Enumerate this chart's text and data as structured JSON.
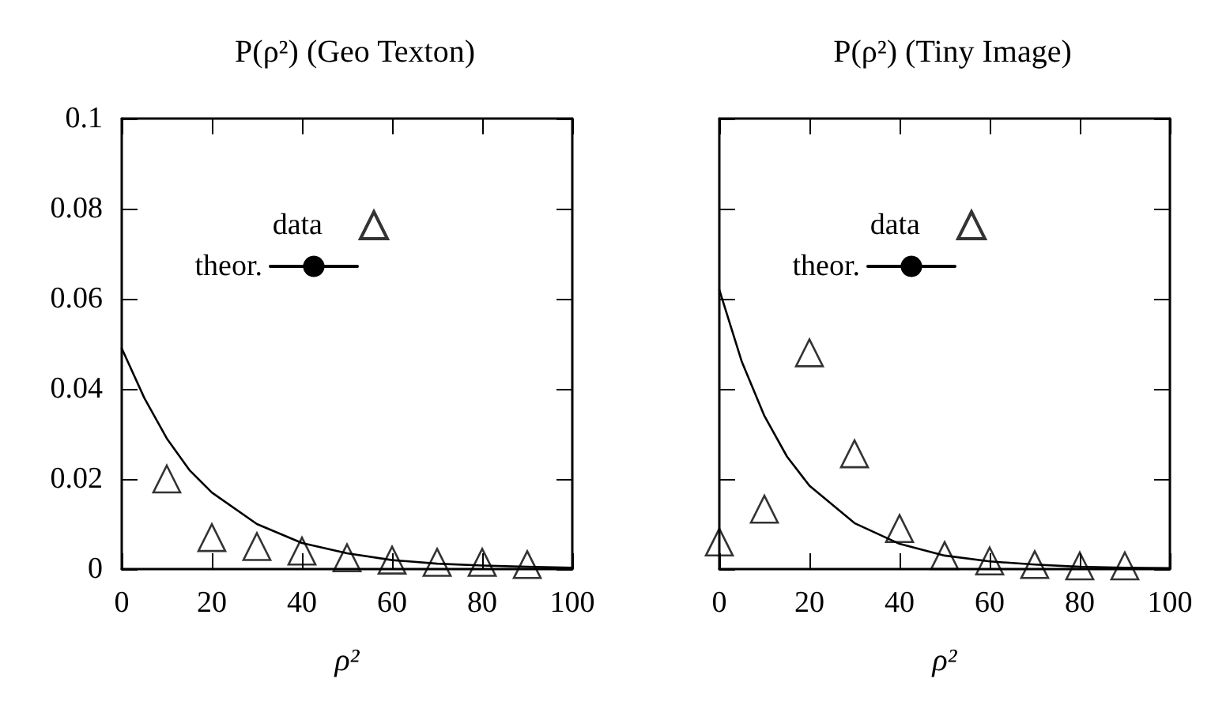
{
  "chart_data": [
    {
      "type": "scatter",
      "title": "P(ρ²) (Geo Texton)",
      "xlabel": "ρ²",
      "xlim": [
        0,
        100
      ],
      "xticks": [
        0,
        20,
        40,
        60,
        80,
        100
      ],
      "ylim": [
        0,
        0.1
      ],
      "yticks": [
        0,
        0.02,
        0.04,
        0.06,
        0.08,
        0.1
      ],
      "grid": false,
      "legend": "top",
      "series": [
        {
          "name": "data",
          "marker": "triangle",
          "color": "#000000",
          "x": [
            10,
            20,
            30,
            40,
            50,
            60,
            70,
            80,
            90
          ],
          "values": [
            0.02,
            0.007,
            0.005,
            0.004,
            0.0025,
            0.002,
            0.0015,
            0.0015,
            0.001
          ]
        },
        {
          "name": "theor.",
          "type": "line",
          "marker": "none",
          "color": "#000000",
          "x": [
            0,
            5,
            10,
            15,
            20,
            30,
            40,
            50,
            60,
            70,
            80,
            90,
            100
          ],
          "values": [
            0.049,
            0.038,
            0.029,
            0.022,
            0.017,
            0.01,
            0.0058,
            0.0035,
            0.002,
            0.0012,
            0.0008,
            0.0005,
            0.0003
          ]
        }
      ]
    },
    {
      "type": "scatter",
      "title": "P(ρ²) (Tiny Image)",
      "xlabel": "ρ²",
      "xlim": [
        0,
        100
      ],
      "xticks": [
        0,
        20,
        40,
        60,
        80,
        100
      ],
      "ylim": [
        0,
        0.1
      ],
      "yticks": [
        0,
        0.02,
        0.04,
        0.06,
        0.08,
        0.1
      ],
      "tick_labels": "x",
      "grid": false,
      "legend": "top",
      "series": [
        {
          "name": "data",
          "marker": "triangle",
          "color": "#000000",
          "x": [
            0,
            10,
            20,
            30,
            40,
            50,
            60,
            70,
            80,
            90
          ],
          "values": [
            0.006,
            0.0133,
            0.048,
            0.0256,
            0.009,
            0.003,
            0.0018,
            0.001,
            0.0007,
            0.0007
          ]
        },
        {
          "name": "theor.",
          "type": "line",
          "marker": "none",
          "color": "#000000",
          "x": [
            0,
            5,
            10,
            15,
            20,
            30,
            40,
            50,
            60,
            70,
            80,
            90,
            100
          ],
          "values": [
            0.062,
            0.046,
            0.034,
            0.025,
            0.0185,
            0.0102,
            0.0056,
            0.003,
            0.0017,
            0.001,
            0.0005,
            0.0003,
            0.0002
          ]
        }
      ]
    }
  ]
}
